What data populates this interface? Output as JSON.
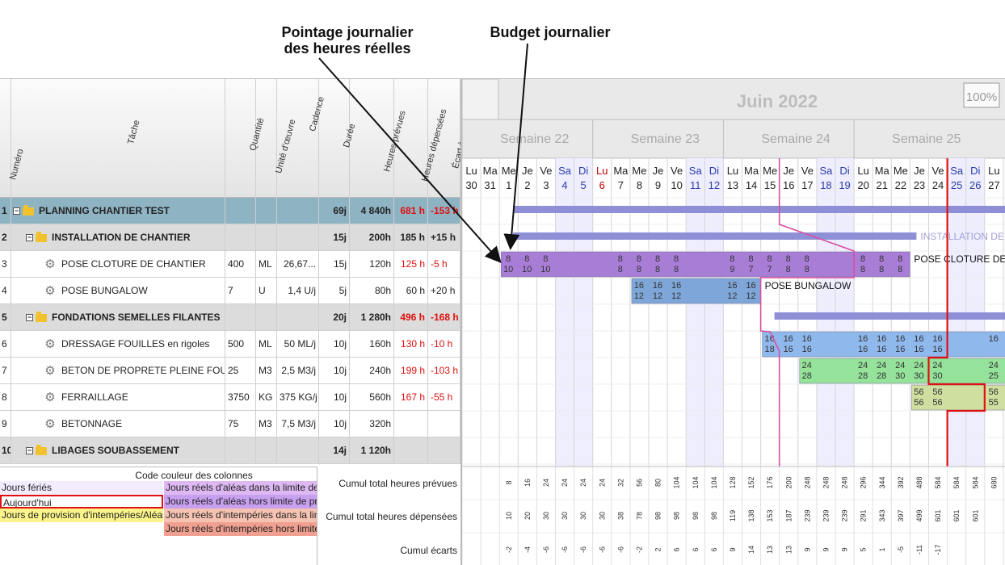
{
  "callouts": {
    "pointage": [
      "Pointage journalier",
      "des heures réelles"
    ],
    "budget": "Budget journalier"
  },
  "columns": {
    "numero": "Numéro",
    "tache": "Tâche",
    "quantite": "Quantité",
    "unite": "Unité d'œuvre",
    "cadence": "Cadence",
    "duree": "Durée",
    "heures_prevues": "Heures prévues",
    "heures_depensees": "Heures dépensées",
    "ecart": "Écart à stade"
  },
  "rows": [
    {
      "num": "1",
      "level": 0,
      "icon": "folder",
      "name": "PLANNING CHANTIER TEST",
      "qty": "",
      "unit": "",
      "cadence": "",
      "duree": "69j",
      "hp": "4 840h",
      "hd": "681 h",
      "hd_red": true,
      "ecart": "-153 h",
      "ecart_red": true
    },
    {
      "num": "2",
      "level": 1,
      "icon": "folder",
      "name": "INSTALLATION DE CHANTIER",
      "qty": "",
      "unit": "",
      "cadence": "",
      "duree": "15j",
      "hp": "200h",
      "hd": "185 h",
      "hd_red": false,
      "ecart": "+15 h",
      "ecart_red": false
    },
    {
      "num": "3",
      "level": 2,
      "icon": "gear",
      "name": "POSE CLOTURE DE CHANTIER",
      "qty": "400",
      "unit": "ML",
      "cadence": "26,67...",
      "duree": "15j",
      "hp": "120h",
      "hd": "125 h",
      "hd_red": true,
      "ecart": "-5 h",
      "ecart_red": true
    },
    {
      "num": "4",
      "level": 2,
      "icon": "gear",
      "name": "POSE BUNGALOW",
      "qty": "7",
      "unit": "U",
      "cadence": "1,4 U/j",
      "duree": "5j",
      "hp": "80h",
      "hd": "60 h",
      "hd_red": false,
      "ecart": "+20 h",
      "ecart_red": false
    },
    {
      "num": "5",
      "level": 1,
      "icon": "folder",
      "name": "FONDATIONS SEMELLES FILANTES",
      "qty": "",
      "unit": "",
      "cadence": "",
      "duree": "20j",
      "hp": "1 280h",
      "hd": "496 h",
      "hd_red": true,
      "ecart": "-168 h",
      "ecart_red": true
    },
    {
      "num": "6",
      "level": 2,
      "icon": "gear",
      "name": "DRESSAGE FOUILLES en rigoles",
      "qty": "500",
      "unit": "ML",
      "cadence": "50 ML/j",
      "duree": "10j",
      "hp": "160h",
      "hd": "130 h",
      "hd_red": true,
      "ecart": "-10 h",
      "ecart_red": true
    },
    {
      "num": "7",
      "level": 2,
      "icon": "gear",
      "name": "BETON DE PROPRETE PLEINE FOUILLE",
      "qty": "25",
      "unit": "M3",
      "cadence": "2,5 M3/j",
      "duree": "10j",
      "hp": "240h",
      "hd": "199 h",
      "hd_red": true,
      "ecart": "-103 h",
      "ecart_red": true
    },
    {
      "num": "8",
      "level": 2,
      "icon": "gear",
      "name": "FERRAILLAGE",
      "qty": "3750",
      "unit": "KG",
      "cadence": "375 KG/j",
      "duree": "10j",
      "hp": "560h",
      "hd": "167 h",
      "hd_red": true,
      "ecart": "-55 h",
      "ecart_red": true
    },
    {
      "num": "9",
      "level": 2,
      "icon": "gear",
      "name": "BETONNAGE",
      "qty": "75",
      "unit": "M3",
      "cadence": "7,5 M3/j",
      "duree": "10j",
      "hp": "320h",
      "hd": "",
      "hd_red": false,
      "ecart": "",
      "ecart_red": false
    },
    {
      "num": "10",
      "level": 1,
      "icon": "folder",
      "name": "LIBAGES SOUBASSEMENT",
      "qty": "",
      "unit": "",
      "cadence": "",
      "duree": "14j",
      "hp": "1 120h",
      "hd": "",
      "hd_red": false,
      "ecart": "",
      "ecart_red": false
    }
  ],
  "legend": {
    "title": "Code couleur des colonnes",
    "items": [
      {
        "text": "Jours fériés",
        "color": "#f3ecff"
      },
      {
        "text": "Aujourd'hui",
        "color": "#ffffff",
        "border": "#e01010"
      },
      {
        "text": "Jours de provision d'intempéries/Aléas",
        "color": "#fbf48a"
      },
      {
        "text": "Jours réels d'aléas dans la limite de provision",
        "color": "#ddb8f2"
      },
      {
        "text": "Jours réels d'aléas hors limite de provision",
        "color": "#c8a0f0"
      },
      {
        "text": "Jours réels d'intempéries dans la limite de provision",
        "color": "#f6c3b2"
      },
      {
        "text": "Jours réels d'intempéries hors limite de provision",
        "color": "#f0a090"
      }
    ]
  },
  "cumul_labels": [
    "Cumul total heures prévues",
    "Cumul total heures dépensées",
    "Cumul écarts"
  ],
  "gantt": {
    "month": "Juin 2022",
    "zoom": "100%",
    "weeks": [
      "Semaine 22",
      "Semaine 23",
      "Semaine 24",
      "Semaine 25"
    ],
    "days": [
      {
        "d": "Lu",
        "n": "30",
        "we": false,
        "hol": false
      },
      {
        "d": "Ma",
        "n": "31",
        "we": false,
        "hol": false
      },
      {
        "d": "Me",
        "n": "1",
        "we": false,
        "hol": false
      },
      {
        "d": "Je",
        "n": "2",
        "we": false,
        "hol": false
      },
      {
        "d": "Ve",
        "n": "3",
        "we": false,
        "hol": false
      },
      {
        "d": "Sa",
        "n": "4",
        "we": true,
        "hol": false
      },
      {
        "d": "Di",
        "n": "5",
        "we": true,
        "hol": false
      },
      {
        "d": "Lu",
        "n": "6",
        "we": false,
        "hol": true
      },
      {
        "d": "Ma",
        "n": "7",
        "we": false,
        "hol": false
      },
      {
        "d": "Me",
        "n": "8",
        "we": false,
        "hol": false
      },
      {
        "d": "Je",
        "n": "9",
        "we": false,
        "hol": false
      },
      {
        "d": "Ve",
        "n": "10",
        "we": false,
        "hol": false
      },
      {
        "d": "Sa",
        "n": "11",
        "we": true,
        "hol": false
      },
      {
        "d": "Di",
        "n": "12",
        "we": true,
        "hol": false
      },
      {
        "d": "Lu",
        "n": "13",
        "we": false,
        "hol": false
      },
      {
        "d": "Ma",
        "n": "14",
        "we": false,
        "hol": false
      },
      {
        "d": "Me",
        "n": "15",
        "we": false,
        "hol": false
      },
      {
        "d": "Je",
        "n": "16",
        "we": false,
        "hol": false
      },
      {
        "d": "Ve",
        "n": "17",
        "we": false,
        "hol": false
      },
      {
        "d": "Sa",
        "n": "18",
        "we": true,
        "hol": false
      },
      {
        "d": "Di",
        "n": "19",
        "we": true,
        "hol": false
      },
      {
        "d": "Lu",
        "n": "20",
        "we": false,
        "hol": false
      },
      {
        "d": "Ma",
        "n": "21",
        "we": false,
        "hol": false
      },
      {
        "d": "Me",
        "n": "22",
        "we": false,
        "hol": false
      },
      {
        "d": "Je",
        "n": "23",
        "we": false,
        "hol": false
      },
      {
        "d": "Ve",
        "n": "24",
        "we": false,
        "hol": false
      },
      {
        "d": "Sa",
        "n": "25",
        "we": true,
        "hol": false
      },
      {
        "d": "Di",
        "n": "26",
        "we": true,
        "hol": false
      },
      {
        "d": "Lu",
        "n": "27",
        "we": false,
        "hol": false
      },
      {
        "d": "M",
        "n": "",
        "we": false,
        "hol": false
      }
    ],
    "summary_bars": [
      {
        "row": 0,
        "start": 2,
        "end": 30,
        "color": "#8f8fd8",
        "label": ""
      },
      {
        "row": 1,
        "start": 2,
        "end": 24,
        "color": "#8f8fd8",
        "label": "INSTALLATION DE C"
      },
      {
        "row": 4,
        "start": 16,
        "end": 30,
        "color": "#8f8fd8",
        "label": ""
      }
    ],
    "task_bars": [
      {
        "row": 2,
        "start": 2,
        "end": 24,
        "color": "#a87dd6",
        "label": "POSE CLOTURE DE C",
        "cells": [
          [
            2,
            "8",
            "10"
          ],
          [
            3,
            "8",
            "10"
          ],
          [
            4,
            "8",
            "10"
          ],
          [
            8,
            "8",
            "8"
          ],
          [
            9,
            "8",
            "8"
          ],
          [
            10,
            "8",
            "8"
          ],
          [
            11,
            "8",
            "8"
          ],
          [
            14,
            "8",
            "9"
          ],
          [
            15,
            "8",
            "7"
          ],
          [
            16,
            "8",
            "7"
          ],
          [
            17,
            "8",
            "8"
          ],
          [
            18,
            "8",
            "8"
          ],
          [
            21,
            "8",
            "8"
          ],
          [
            22,
            "8",
            "8"
          ],
          [
            23,
            "8",
            "8"
          ]
        ]
      },
      {
        "row": 3,
        "start": 9,
        "end": 16,
        "color": "#7fa6d8",
        "label": "POSE BUNGALOW",
        "cells": [
          [
            9,
            "16",
            "12"
          ],
          [
            10,
            "16",
            "12"
          ],
          [
            11,
            "16",
            "12"
          ],
          [
            14,
            "16",
            "12"
          ],
          [
            15,
            "16",
            "12"
          ]
        ]
      },
      {
        "row": 5,
        "start": 16,
        "end": 30,
        "color": "#8fb8ec",
        "label": "",
        "cells": [
          [
            16,
            "16",
            "18"
          ],
          [
            17,
            "16",
            "16"
          ],
          [
            18,
            "16",
            "16"
          ],
          [
            21,
            "16",
            "16"
          ],
          [
            22,
            "16",
            "16"
          ],
          [
            23,
            "16",
            "16"
          ],
          [
            24,
            "16",
            "16"
          ],
          [
            25,
            "16",
            "16"
          ],
          [
            28,
            "16",
            ""
          ]
        ]
      },
      {
        "row": 6,
        "start": 18,
        "end": 30,
        "color": "#95e29a",
        "label": "",
        "cells": [
          [
            18,
            "24",
            "28"
          ],
          [
            21,
            "24",
            "28"
          ],
          [
            22,
            "24",
            "28"
          ],
          [
            23,
            "24",
            "30"
          ],
          [
            24,
            "24",
            "30"
          ],
          [
            25,
            "24",
            "30"
          ],
          [
            28,
            "24",
            "25"
          ]
        ]
      },
      {
        "row": 7,
        "start": 24,
        "end": 30,
        "color": "#cfdfa0",
        "label": "",
        "cells": [
          [
            24,
            "56",
            "56"
          ],
          [
            25,
            "56",
            "56"
          ],
          [
            28,
            "56",
            "55"
          ]
        ]
      }
    ],
    "cumul_prevues": [
      "",
      "",
      "8",
      "16",
      "24",
      "24",
      "24",
      "24",
      "32",
      "56",
      "80",
      "104",
      "104",
      "104",
      "128",
      "152",
      "176",
      "200",
      "248",
      "248",
      "248",
      "296",
      "344",
      "392",
      "488",
      "584",
      "584",
      "584",
      "680",
      ""
    ],
    "cumul_depensees": [
      "",
      "",
      "10",
      "20",
      "30",
      "30",
      "30",
      "30",
      "38",
      "78",
      "98",
      "98",
      "98",
      "98",
      "119",
      "138",
      "153",
      "187",
      "239",
      "239",
      "239",
      "291",
      "343",
      "397",
      "499",
      "601",
      "601",
      "601",
      "",
      ""
    ],
    "cumul_ecarts": [
      "",
      "",
      "-2",
      "-4",
      "-6",
      "-6",
      "-6",
      "-6",
      "-6",
      "-2",
      "2",
      "6",
      "6",
      "6",
      "9",
      "14",
      "13",
      "13",
      "9",
      "9",
      "9",
      "5",
      "1",
      "-5",
      "-11",
      "-17",
      "",
      "",
      "",
      ""
    ]
  }
}
